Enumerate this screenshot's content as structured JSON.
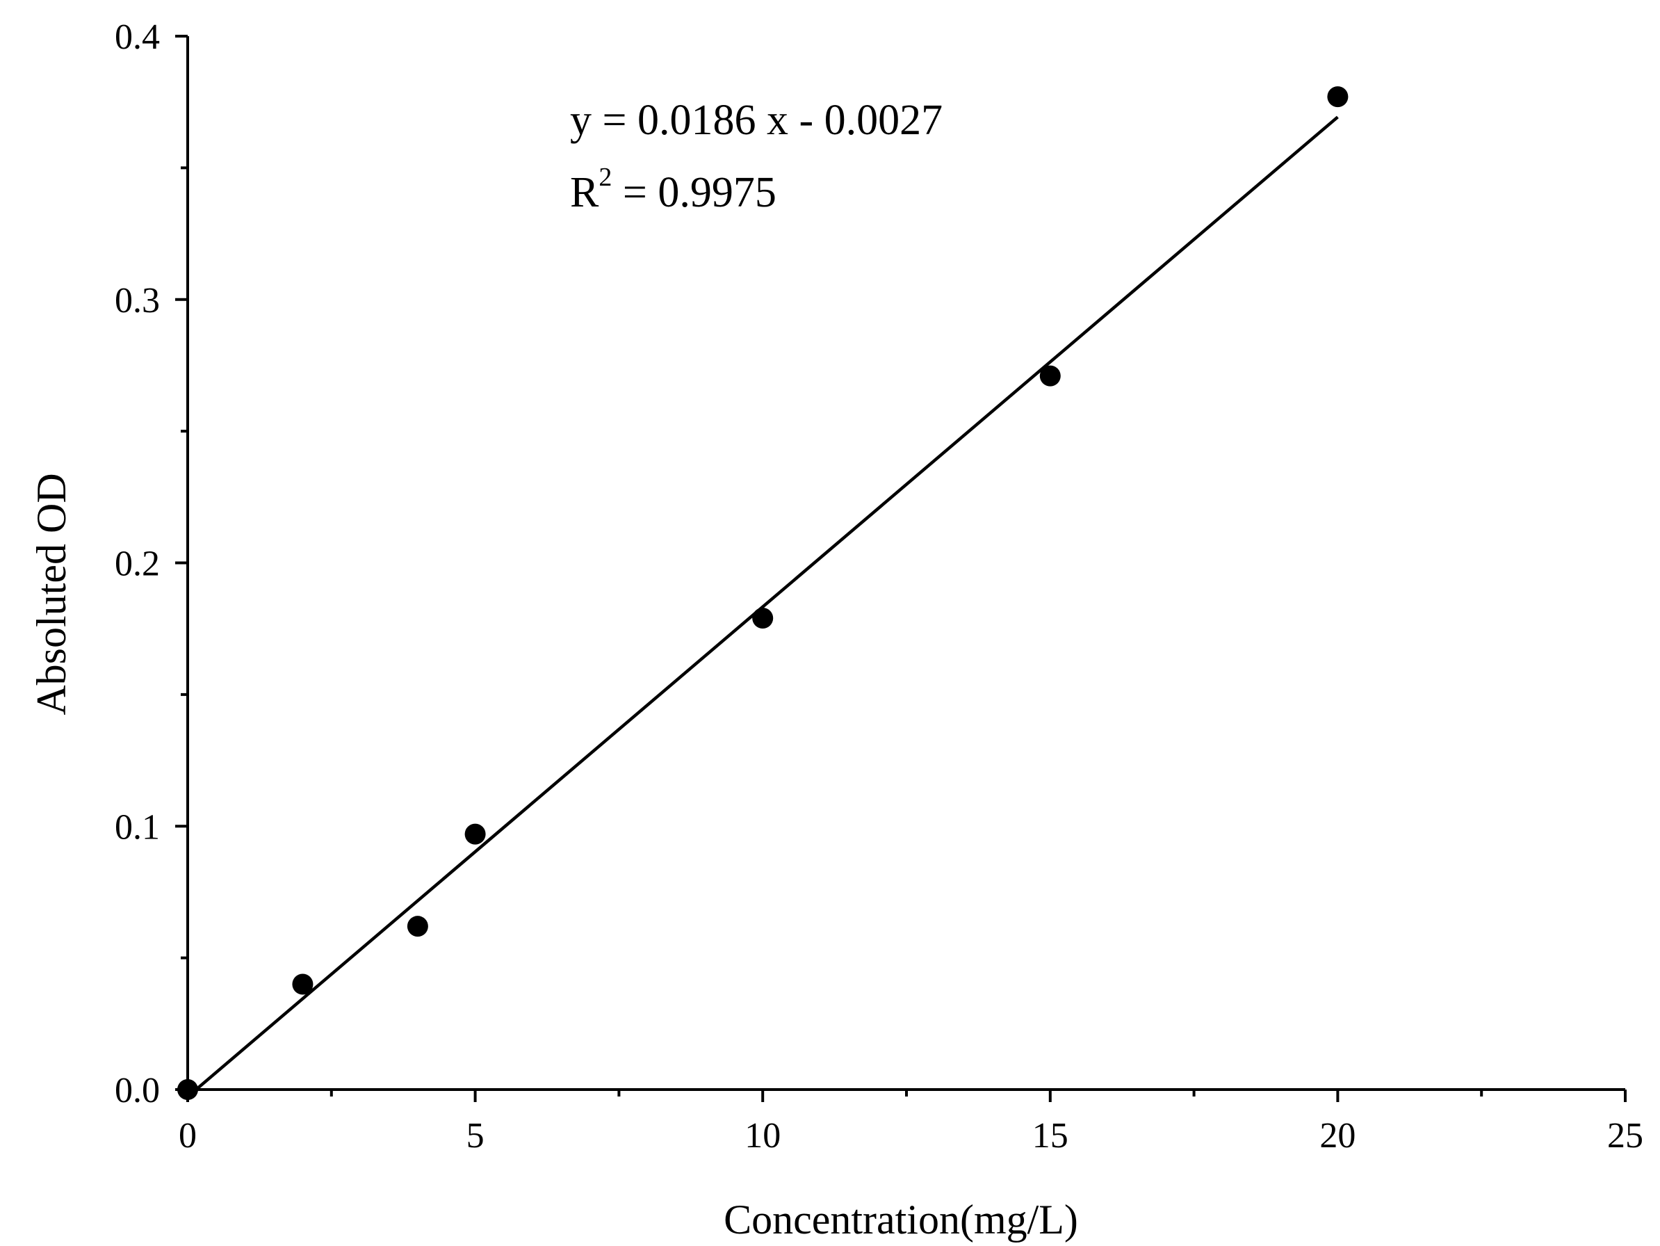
{
  "chart_data": {
    "type": "scatter",
    "title": "",
    "xlabel": "Concentration(mg/L)",
    "ylabel": "Absoluted OD",
    "xlim": [
      0,
      25
    ],
    "ylim": [
      0,
      0.4
    ],
    "x_ticks": [
      "0",
      "5",
      "10",
      "15",
      "20",
      "25"
    ],
    "y_ticks": [
      "0.0",
      "0.1",
      "0.2",
      "0.3",
      "0.4"
    ],
    "x_tick_values": [
      0,
      5,
      10,
      15,
      20,
      25
    ],
    "y_tick_values": [
      0,
      0.1,
      0.2,
      0.3,
      0.4
    ],
    "x_minor_tick_values": [
      2.5,
      7.5,
      12.5,
      17.5,
      22.5
    ],
    "y_minor_tick_values": [
      0.05,
      0.15,
      0.25,
      0.35
    ],
    "grid": false,
    "series": [
      {
        "type": "scatter",
        "marker": "filled-circle",
        "color": "#000000",
        "points": [
          {
            "x": 0,
            "y": 0.0
          },
          {
            "x": 2,
            "y": 0.04
          },
          {
            "x": 4,
            "y": 0.062
          },
          {
            "x": 5,
            "y": 0.097
          },
          {
            "x": 10,
            "y": 0.179
          },
          {
            "x": 15,
            "y": 0.271
          },
          {
            "x": 20,
            "y": 0.377
          }
        ]
      }
    ],
    "fit": {
      "type": "linear",
      "slope": 0.0186,
      "intercept": -0.0027,
      "x_range": [
        0.15,
        20
      ],
      "color": "#000000"
    },
    "annotations": {
      "equation": "y = 0.0186 x - 0.0027",
      "r2_base": "R",
      "r2_sup": "2",
      "r2_rest": " = 0.9975"
    }
  }
}
